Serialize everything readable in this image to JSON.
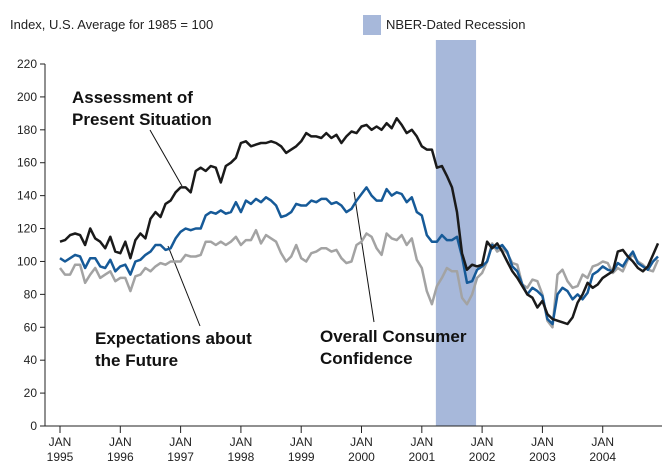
{
  "chart_data": {
    "type": "line",
    "subtitle": "Index, U.S. Average for 1985 = 100",
    "recession": {
      "label": "NBER-Dated Recession",
      "start": "2001-03",
      "end": "2001-11",
      "color": "#a7b8da"
    },
    "x": [
      "1995-01",
      "1995-02",
      "1995-03",
      "1995-04",
      "1995-05",
      "1995-06",
      "1995-07",
      "1995-08",
      "1995-09",
      "1995-10",
      "1995-11",
      "1995-12",
      "1996-01",
      "1996-02",
      "1996-03",
      "1996-04",
      "1996-05",
      "1996-06",
      "1996-07",
      "1996-08",
      "1996-09",
      "1996-10",
      "1996-11",
      "1996-12",
      "1997-01",
      "1997-02",
      "1997-03",
      "1997-04",
      "1997-05",
      "1997-06",
      "1997-07",
      "1997-08",
      "1997-09",
      "1997-10",
      "1997-11",
      "1997-12",
      "1998-01",
      "1998-02",
      "1998-03",
      "1998-04",
      "1998-05",
      "1998-06",
      "1998-07",
      "1998-08",
      "1998-09",
      "1998-10",
      "1998-11",
      "1998-12",
      "1999-01",
      "1999-02",
      "1999-03",
      "1999-04",
      "1999-05",
      "1999-06",
      "1999-07",
      "1999-08",
      "1999-09",
      "1999-10",
      "1999-11",
      "1999-12",
      "2000-01",
      "2000-02",
      "2000-03",
      "2000-04",
      "2000-05",
      "2000-06",
      "2000-07",
      "2000-08",
      "2000-09",
      "2000-10",
      "2000-11",
      "2000-12",
      "2001-01",
      "2001-02",
      "2001-03",
      "2001-04",
      "2001-05",
      "2001-06",
      "2001-07",
      "2001-08",
      "2001-09",
      "2001-10",
      "2001-11",
      "2001-12",
      "2002-01",
      "2002-02",
      "2002-03",
      "2002-04",
      "2002-05",
      "2002-06",
      "2002-07",
      "2002-08",
      "2002-09",
      "2002-10",
      "2002-11",
      "2002-12",
      "2003-01",
      "2003-02",
      "2003-03",
      "2003-04",
      "2003-05",
      "2003-06",
      "2003-07",
      "2003-08",
      "2003-09",
      "2003-10",
      "2003-11",
      "2003-12",
      "2004-01",
      "2004-02",
      "2004-03",
      "2004-04",
      "2004-05",
      "2004-06",
      "2004-07",
      "2004-08",
      "2004-09",
      "2004-10",
      "2004-11",
      "2004-12"
    ],
    "series": [
      {
        "name": "Assessment of Present Situation",
        "color": "#1a1a1a",
        "values": [
          112,
          113,
          116,
          117,
          116,
          110,
          120,
          114,
          112,
          108,
          115,
          106,
          105,
          112,
          102,
          113,
          117,
          114,
          126,
          130,
          127,
          135,
          137,
          142,
          145,
          145,
          142,
          155,
          157,
          155,
          158,
          157,
          148,
          158,
          160,
          163,
          172,
          173,
          170,
          171,
          172,
          172,
          173,
          172,
          170,
          166,
          168,
          170,
          173,
          178,
          176,
          176,
          175,
          178,
          175,
          177,
          172,
          176,
          179,
          178,
          182,
          183,
          180,
          182,
          180,
          184,
          181,
          187,
          183,
          178,
          180,
          176,
          170,
          168,
          168,
          157,
          158,
          152,
          145,
          130,
          105,
          95,
          98,
          97,
          98,
          112,
          108,
          111,
          106,
          100,
          94,
          90,
          85,
          80,
          78,
          72,
          76,
          68,
          65,
          64,
          63,
          62,
          66,
          75,
          80,
          87,
          84,
          86,
          90,
          92,
          94,
          106,
          107,
          103,
          100,
          96,
          94,
          97,
          104,
          111
        ]
      },
      {
        "name": "Overall Consumer Confidence",
        "color": "#165a98",
        "values": [
          102,
          100,
          102,
          104,
          103,
          96,
          102,
          102,
          97,
          96,
          101,
          94,
          97,
          98,
          92,
          100,
          101,
          104,
          106,
          110,
          110,
          107,
          108,
          114,
          118,
          120,
          119,
          120,
          120,
          128,
          130,
          129,
          131,
          129,
          130,
          136,
          130,
          137,
          135,
          138,
          136,
          139,
          137,
          134,
          127,
          128,
          130,
          135,
          134,
          134,
          137,
          136,
          138,
          138,
          135,
          136,
          134,
          130,
          132,
          137,
          141,
          145,
          140,
          137,
          137,
          144,
          140,
          142,
          141,
          136,
          139,
          130,
          128,
          116,
          112,
          112,
          116,
          113,
          113,
          115,
          103,
          87,
          88,
          95,
          97,
          100,
          110,
          108,
          110,
          106,
          97,
          94,
          86,
          80,
          84,
          82,
          79,
          65,
          62,
          80,
          84,
          82,
          77,
          80,
          77,
          81,
          92,
          94,
          97,
          95,
          94,
          99,
          97,
          102,
          106,
          99,
          97,
          95,
          100,
          103
        ]
      },
      {
        "name": "Expectations about the Future",
        "color": "#a3a3a3",
        "values": [
          96,
          92,
          92,
          98,
          98,
          87,
          92,
          96,
          90,
          92,
          94,
          88,
          90,
          90,
          82,
          91,
          92,
          96,
          94,
          97,
          99,
          98,
          100,
          100,
          100,
          104,
          103,
          103,
          104,
          112,
          112,
          110,
          112,
          110,
          112,
          115,
          110,
          113,
          113,
          119,
          111,
          116,
          114,
          112,
          105,
          100,
          103,
          110,
          102,
          100,
          105,
          106,
          108,
          108,
          106,
          107,
          102,
          99,
          100,
          110,
          112,
          117,
          115,
          108,
          104,
          117,
          114,
          113,
          116,
          110,
          114,
          101,
          96,
          82,
          74,
          85,
          90,
          96,
          94,
          94,
          78,
          74,
          80,
          90,
          93,
          100,
          111,
          106,
          108,
          105,
          99,
          98,
          86,
          84,
          89,
          88,
          80,
          64,
          60,
          92,
          95,
          88,
          84,
          85,
          92,
          90,
          97,
          98,
          100,
          99,
          93,
          96,
          94,
          101,
          104,
          100,
          98,
          95,
          94,
          101
        ]
      }
    ],
    "annotations": [
      {
        "text": [
          "Assessment of",
          "Present Situation"
        ]
      },
      {
        "text": [
          "Expectations about",
          "the Future"
        ]
      },
      {
        "text": [
          "Overall Consumer",
          "Confidence"
        ]
      }
    ],
    "xticks": [
      {
        "value": "1995-01",
        "label": [
          "JAN",
          "1995"
        ]
      },
      {
        "value": "1996-01",
        "label": [
          "JAN",
          "1996"
        ]
      },
      {
        "value": "1997-01",
        "label": [
          "JAN",
          "1997"
        ]
      },
      {
        "value": "1998-01",
        "label": [
          "JAN",
          "1998"
        ]
      },
      {
        "value": "1999-01",
        "label": [
          "JAN",
          "1999"
        ]
      },
      {
        "value": "2000-01",
        "label": [
          "JAN",
          "2000"
        ]
      },
      {
        "value": "2001-01",
        "label": [
          "JAN",
          "2001"
        ]
      },
      {
        "value": "2002-01",
        "label": [
          "JAN",
          "2002"
        ]
      },
      {
        "value": "2003-01",
        "label": [
          "JAN",
          "2003"
        ]
      },
      {
        "value": "2004-01",
        "label": [
          "JAN",
          "2004"
        ]
      }
    ],
    "ylim": [
      0,
      220
    ],
    "yticks": [
      0,
      20,
      40,
      60,
      80,
      100,
      120,
      140,
      160,
      180,
      200,
      220
    ]
  }
}
